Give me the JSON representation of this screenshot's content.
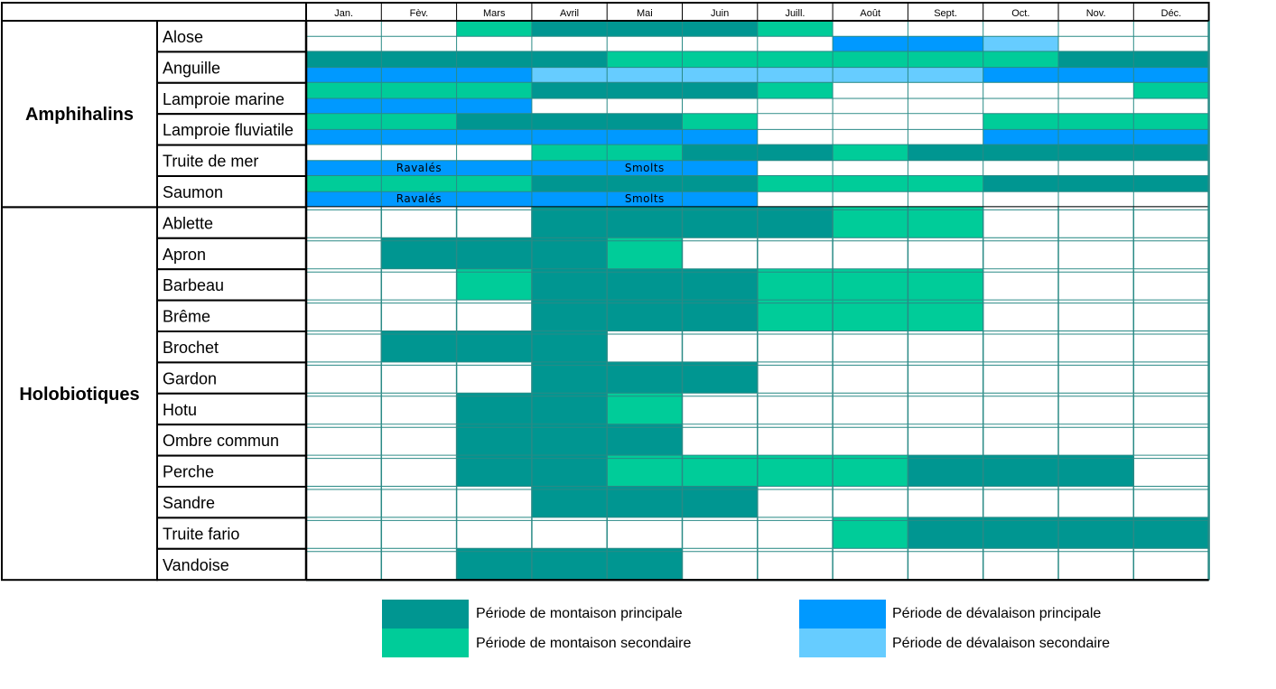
{
  "colors": {
    "mont_principal": "#009691",
    "mont_secondaire": "#00cc99",
    "deval_principal": "#0099ff",
    "deval_secondaire": "#66ccff"
  },
  "legend": {
    "mont_principal": "Période de montaison principale",
    "mont_secondaire": "Période de montaison secondaire",
    "deval_principal": "Période de dévalaison principale",
    "deval_secondaire": "Période de dévalaison secondaire"
  },
  "chart_data": {
    "type": "table",
    "months": [
      "Jan.",
      "Fèv.",
      "Mars",
      "Avril",
      "Mai",
      "Juin",
      "Juill.",
      "Août",
      "Sept.",
      "Oct.",
      "Nov.",
      "Déc."
    ],
    "codes": {
      "M": "mont_principal",
      "m": "mont_secondaire",
      "D": "deval_principal",
      "d": "deval_secondaire",
      "0": "none"
    },
    "groups": [
      {
        "name": "Amphihalins",
        "species": [
          {
            "name": "Alose",
            "montaison": [
              "0",
              "0",
              "m",
              "M",
              "M",
              "M",
              "m",
              "0",
              "0",
              "0",
              "0",
              "0"
            ],
            "devalaison": [
              "0",
              "0",
              "0",
              "0",
              "0",
              "0",
              "0",
              "D",
              "D",
              "d",
              "0",
              "0"
            ]
          },
          {
            "name": "Anguille",
            "montaison": [
              "M",
              "M",
              "M",
              "M",
              "m",
              "m",
              "m",
              "m",
              "m",
              "m",
              "M",
              "M"
            ],
            "devalaison": [
              "D",
              "D",
              "D",
              "d",
              "d",
              "d",
              "d",
              "d",
              "d",
              "D",
              "D",
              "D"
            ]
          },
          {
            "name": "Lamproie marine",
            "montaison": [
              "m",
              "m",
              "m",
              "M",
              "M",
              "M",
              "m",
              "0",
              "0",
              "0",
              "0",
              "m"
            ],
            "devalaison": [
              "D",
              "D",
              "D",
              "0",
              "0",
              "0",
              "0",
              "0",
              "0",
              "0",
              "0",
              "0"
            ]
          },
          {
            "name": "Lamproie fluviatile",
            "montaison": [
              "m",
              "m",
              "M",
              "M",
              "M",
              "m",
              "0",
              "0",
              "0",
              "m",
              "m",
              "m"
            ],
            "devalaison": [
              "D",
              "D",
              "D",
              "D",
              "D",
              "D",
              "0",
              "0",
              "0",
              "D",
              "D",
              "D"
            ]
          },
          {
            "name": "Truite de mer",
            "montaison": [
              "0",
              "0",
              "0",
              "m",
              "m",
              "M",
              "M",
              "m",
              "M",
              "M",
              "M",
              "M"
            ],
            "devalaison": [
              "D",
              "D",
              "D",
              "D",
              "D",
              "D",
              "0",
              "0",
              "0",
              "0",
              "0",
              "0"
            ],
            "annotations": [
              {
                "text": "Ravalés",
                "from": 0,
                "to": 2
              },
              {
                "text": "Smolts",
                "from": 3,
                "to": 5
              }
            ]
          },
          {
            "name": "Saumon",
            "montaison": [
              "m",
              "m",
              "m",
              "M",
              "M",
              "M",
              "m",
              "m",
              "m",
              "M",
              "M",
              "M"
            ],
            "devalaison": [
              "D",
              "D",
              "D",
              "D",
              "D",
              "D",
              "0",
              "0",
              "0",
              "0",
              "0",
              "0"
            ],
            "annotations": [
              {
                "text": "Ravalés",
                "from": 0,
                "to": 2
              },
              {
                "text": "Smolts",
                "from": 3,
                "to": 5
              }
            ]
          }
        ]
      },
      {
        "name": "Holobiotiques",
        "species": [
          {
            "name": "Ablette",
            "montaison": [
              "0",
              "0",
              "0",
              "M",
              "M",
              "M",
              "M",
              "m",
              "m",
              "0",
              "0",
              "0"
            ]
          },
          {
            "name": "Apron",
            "montaison": [
              "0",
              "M",
              "M",
              "M",
              "m",
              "0",
              "0",
              "0",
              "0",
              "0",
              "0",
              "0"
            ]
          },
          {
            "name": "Barbeau",
            "montaison": [
              "0",
              "0",
              "m",
              "M",
              "M",
              "M",
              "m",
              "m",
              "m",
              "0",
              "0",
              "0"
            ]
          },
          {
            "name": "Brême",
            "montaison": [
              "0",
              "0",
              "0",
              "M",
              "M",
              "M",
              "m",
              "m",
              "m",
              "0",
              "0",
              "0"
            ]
          },
          {
            "name": "Brochet",
            "montaison": [
              "0",
              "M",
              "M",
              "M",
              "0",
              "0",
              "0",
              "0",
              "0",
              "0",
              "0",
              "0"
            ]
          },
          {
            "name": "Gardon",
            "montaison": [
              "0",
              "0",
              "0",
              "M",
              "M",
              "M",
              "0",
              "0",
              "0",
              "0",
              "0",
              "0"
            ]
          },
          {
            "name": "Hotu",
            "montaison": [
              "0",
              "0",
              "M",
              "M",
              "m",
              "0",
              "0",
              "0",
              "0",
              "0",
              "0",
              "0"
            ]
          },
          {
            "name": "Ombre commun",
            "montaison": [
              "0",
              "0",
              "M",
              "M",
              "M",
              "0",
              "0",
              "0",
              "0",
              "0",
              "0",
              "0"
            ]
          },
          {
            "name": "Perche",
            "montaison": [
              "0",
              "0",
              "M",
              "M",
              "m",
              "m",
              "m",
              "m",
              "M",
              "M",
              "M",
              "0"
            ]
          },
          {
            "name": "Sandre",
            "montaison": [
              "0",
              "0",
              "0",
              "M",
              "M",
              "M",
              "0",
              "0",
              "0",
              "0",
              "0",
              "0"
            ]
          },
          {
            "name": "Truite fario",
            "montaison": [
              "0",
              "0",
              "0",
              "0",
              "0",
              "0",
              "0",
              "m",
              "M",
              "M",
              "M",
              "M"
            ]
          },
          {
            "name": "Vandoise",
            "montaison": [
              "0",
              "0",
              "M",
              "M",
              "M",
              "0",
              "0",
              "0",
              "0",
              "0",
              "0",
              "0"
            ]
          }
        ]
      }
    ]
  }
}
